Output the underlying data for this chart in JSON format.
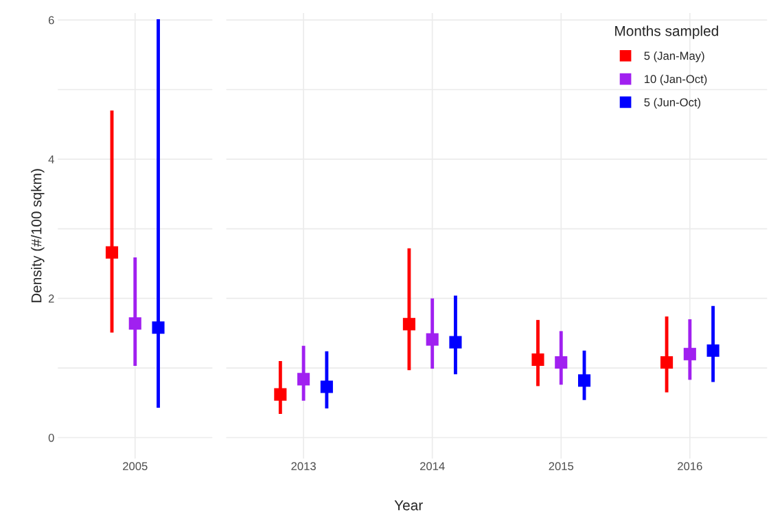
{
  "chart_data": [
    {
      "type": "scatter",
      "ylabel": "Density (#/100 sqkm)",
      "categories": [
        "2005"
      ],
      "ylim": [
        -0.3,
        6.1
      ],
      "yticks": [
        0,
        {
          "value": 1,
          "label": null
        },
        2,
        {
          "value": 3,
          "label": null
        },
        4,
        {
          "value": 5,
          "label": null
        },
        6
      ],
      "grid": true,
      "marker": "square",
      "series": [
        {
          "color": "#ff0000",
          "values": [
            2.66
          ],
          "errors": [
            [
              1.51,
              4.7
            ]
          ]
        },
        {
          "color": "#a020f0",
          "values": [
            1.64
          ],
          "errors": [
            [
              1.03,
              2.59
            ]
          ]
        },
        {
          "color": "#0000ff",
          "values": [
            1.58
          ],
          "errors": [
            [
              0.43,
              6.01
            ]
          ]
        }
      ]
    },
    {
      "type": "scatter",
      "xlabel": "Year",
      "legend_title": "Months sampled",
      "legend": "top right",
      "tick_labels": "x",
      "categories": [
        "2013",
        "2014",
        "2015",
        "2016"
      ],
      "ylim": [
        -0.3,
        6.1
      ],
      "yticks": [
        0,
        {
          "value": 1,
          "label": null
        },
        2,
        {
          "value": 3,
          "label": null
        },
        4,
        {
          "value": 5,
          "label": null
        },
        6
      ],
      "grid": true,
      "marker": "square",
      "series": [
        {
          "name": "5 (Jan-May)",
          "color": "#ff0000",
          "values": [
            0.62,
            1.63,
            1.12,
            1.08
          ],
          "errors": [
            [
              0.34,
              1.1
            ],
            [
              0.97,
              2.72
            ],
            [
              0.74,
              1.69
            ],
            [
              0.65,
              1.74
            ]
          ]
        },
        {
          "name": "10 (Jan-Oct)",
          "color": "#a020f0",
          "values": [
            0.84,
            1.41,
            1.08,
            1.2
          ],
          "errors": [
            [
              0.53,
              1.32
            ],
            [
              0.99,
              2.0
            ],
            [
              0.76,
              1.53
            ],
            [
              0.83,
              1.7
            ]
          ]
        },
        {
          "name": "5 (Jun-Oct)",
          "color": "#0000ff",
          "values": [
            0.73,
            1.37,
            0.82,
            1.25
          ],
          "errors": [
            [
              0.42,
              1.24
            ],
            [
              0.91,
              2.04
            ],
            [
              0.54,
              1.25
            ],
            [
              0.8,
              1.89
            ]
          ]
        }
      ]
    }
  ]
}
